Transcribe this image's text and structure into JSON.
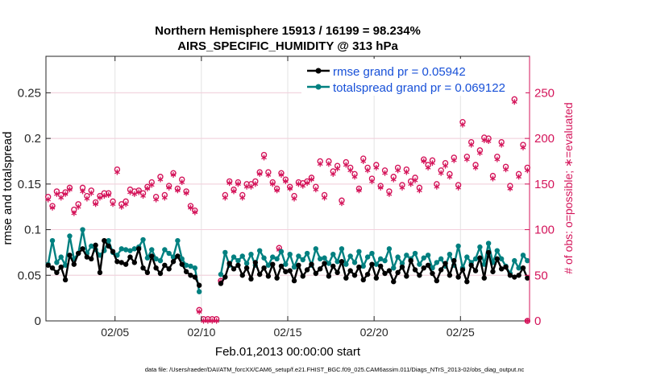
{
  "chart_data": {
    "type": "line",
    "title": "Northern Hemisphere 15913 / 16199 = 98.234%",
    "subtitle": "AIRS_SPECIFIC_HUMIDITY @ 313 hPa",
    "xlabel": "Feb.01,2013 00:00:00 start",
    "ylabel": "rmse and totalspread",
    "ylabel_right": "# of obs: o=possible; ∗=evaluated",
    "footnote": "data file: /Users/raeder/DAI/ATM_forcXX/CAM6_setup/f.e21.FHIST_BGC.f09_025.CAM6assim.011/Diags_NTrS_2013-02/obs_diag_output.nc",
    "x_range": [
      1.0,
      29.0
    ],
    "ylim": [
      0,
      0.29
    ],
    "ylim_right": [
      0,
      290
    ],
    "x_ticks": [
      5,
      10,
      15,
      20,
      25
    ],
    "x_tick_labels": [
      "02/05",
      "02/10",
      "02/15",
      "02/20",
      "02/25"
    ],
    "y_ticks": [
      0,
      0.05,
      0.1,
      0.15,
      0.2,
      0.25
    ],
    "y_tick_labels": [
      "0",
      "0.05",
      "0.1",
      "0.15",
      "0.2",
      "0.25"
    ],
    "y_ticks_right": [
      0,
      50,
      100,
      150,
      200,
      250
    ],
    "y_tick_labels_right": [
      "0",
      "50",
      "100",
      "150",
      "200",
      "250"
    ],
    "grid": true,
    "legend_position": "top-right",
    "colors": {
      "rmse": "#000000",
      "spread": "#008080",
      "obs": "#d4145a",
      "legend_text": "#1750d8"
    },
    "x": [
      1.125,
      1.375,
      1.625,
      1.875,
      2.125,
      2.375,
      2.625,
      2.875,
      3.125,
      3.375,
      3.625,
      3.875,
      4.125,
      4.375,
      4.625,
      4.875,
      5.125,
      5.375,
      5.625,
      5.875,
      6.125,
      6.375,
      6.625,
      6.875,
      7.125,
      7.375,
      7.625,
      7.875,
      8.125,
      8.375,
      8.625,
      8.875,
      9.125,
      9.375,
      9.625,
      9.875,
      10.125,
      10.375,
      10.625,
      10.875,
      11.125,
      11.375,
      11.625,
      11.875,
      12.125,
      12.375,
      12.625,
      12.875,
      13.125,
      13.375,
      13.625,
      13.875,
      14.125,
      14.375,
      14.625,
      14.875,
      15.125,
      15.375,
      15.625,
      15.875,
      16.125,
      16.375,
      16.625,
      16.875,
      17.125,
      17.375,
      17.625,
      17.875,
      18.125,
      18.375,
      18.625,
      18.875,
      19.125,
      19.375,
      19.625,
      19.875,
      20.125,
      20.375,
      20.625,
      20.875,
      21.125,
      21.375,
      21.625,
      21.875,
      22.125,
      22.375,
      22.625,
      22.875,
      23.125,
      23.375,
      23.625,
      23.875,
      24.125,
      24.375,
      24.625,
      24.875,
      25.125,
      25.375,
      25.625,
      25.875,
      26.125,
      26.375,
      26.625,
      26.875,
      27.125,
      27.375,
      27.625,
      27.875,
      28.125,
      28.375,
      28.625,
      28.875
    ],
    "series": [
      {
        "name": "rmse grand pr = 0.05942",
        "values": [
          0.061,
          0.058,
          0.053,
          0.059,
          0.045,
          0.072,
          0.062,
          0.074,
          0.079,
          0.07,
          0.068,
          0.083,
          0.053,
          0.088,
          0.082,
          0.076,
          0.065,
          0.064,
          0.062,
          0.07,
          0.064,
          0.079,
          0.058,
          0.053,
          0.071,
          0.058,
          0.052,
          0.061,
          0.057,
          0.065,
          0.071,
          0.062,
          0.054,
          0.05,
          0.048,
          0.039,
          null,
          null,
          null,
          null,
          0.041,
          0.048,
          0.063,
          0.057,
          0.061,
          0.05,
          0.058,
          0.046,
          0.064,
          0.051,
          0.058,
          0.049,
          0.062,
          0.047,
          0.06,
          0.054,
          0.055,
          0.044,
          0.061,
          0.049,
          0.056,
          0.062,
          0.052,
          0.057,
          0.063,
          0.049,
          0.06,
          0.053,
          0.065,
          0.047,
          0.055,
          0.05,
          0.059,
          0.045,
          0.051,
          0.062,
          0.047,
          0.06,
          0.052,
          0.055,
          0.043,
          0.053,
          0.059,
          0.049,
          0.066,
          0.056,
          0.05,
          0.058,
          0.061,
          0.052,
          0.044,
          0.056,
          0.063,
          0.05,
          0.066,
          0.048,
          0.056,
          0.043,
          0.061,
          0.055,
          0.069,
          0.047,
          0.075,
          0.054,
          0.068,
          0.057,
          0.059,
          0.05,
          0.048,
          0.05,
          0.058,
          0.047
        ]
      },
      {
        "name": "totalspread grand pr = 0.069122",
        "values": [
          0.062,
          0.088,
          0.064,
          0.07,
          0.061,
          0.093,
          0.068,
          0.074,
          0.1,
          0.074,
          0.082,
          0.078,
          0.072,
          0.077,
          0.088,
          0.075,
          0.072,
          0.079,
          0.078,
          0.077,
          0.079,
          0.081,
          0.089,
          0.069,
          0.078,
          0.068,
          0.066,
          0.078,
          0.074,
          0.07,
          0.088,
          0.068,
          0.061,
          0.06,
          0.058,
          0.032,
          null,
          null,
          null,
          null,
          0.051,
          0.075,
          0.061,
          0.07,
          0.066,
          0.071,
          0.063,
          0.073,
          0.061,
          0.077,
          0.069,
          0.061,
          0.07,
          0.068,
          0.076,
          0.062,
          0.073,
          0.059,
          0.071,
          0.067,
          0.074,
          0.061,
          0.079,
          0.068,
          0.069,
          0.063,
          0.073,
          0.065,
          0.079,
          0.062,
          0.071,
          0.064,
          0.076,
          0.06,
          0.07,
          0.074,
          0.062,
          0.068,
          0.066,
          0.079,
          0.058,
          0.07,
          0.063,
          0.072,
          0.068,
          0.074,
          0.062,
          0.069,
          0.072,
          0.058,
          0.064,
          0.068,
          0.06,
          0.073,
          0.061,
          0.082,
          0.058,
          0.07,
          0.064,
          0.068,
          0.081,
          0.062,
          0.085,
          0.064,
          0.077,
          0.068,
          0.06,
          0.052,
          0.066,
          0.058,
          0.072,
          0.066
        ]
      }
    ],
    "obs_possible": [
      136,
      126,
      142,
      138,
      141,
      146,
      122,
      128,
      146,
      137,
      143,
      130,
      137,
      140,
      140,
      131,
      166,
      128,
      131,
      144,
      142,
      143,
      140,
      147,
      152,
      136,
      158,
      138,
      148,
      162,
      145,
      155,
      142,
      126,
      121,
      12,
      2,
      2,
      2,
      2,
      44,
      138,
      153,
      144,
      152,
      138,
      150,
      150,
      153,
      163,
      182,
      163,
      152,
      145,
      162,
      155,
      147,
      137,
      152,
      151,
      153,
      157,
      147,
      175,
      138,
      175,
      164,
      170,
      132,
      174,
      168,
      161,
      145,
      178,
      168,
      156,
      171,
      148,
      165,
      142,
      158,
      168,
      149,
      166,
      153,
      157,
      146,
      177,
      171,
      176,
      150,
      165,
      173,
      161,
      179,
      149,
      218,
      180,
      196,
      171,
      187,
      201,
      200,
      159,
      180,
      196,
      169,
      148,
      243,
      161,
      193,
      168
    ],
    "obs_evaluated": [
      133,
      124,
      139,
      135,
      139,
      144,
      118,
      125,
      142,
      134,
      140,
      128,
      135,
      137,
      138,
      128,
      163,
      125,
      128,
      141,
      139,
      141,
      137,
      145,
      149,
      133,
      155,
      135,
      146,
      160,
      143,
      152,
      140,
      124,
      119,
      10,
      0,
      0,
      0,
      0,
      43,
      135,
      151,
      142,
      150,
      135,
      147,
      147,
      150,
      161,
      179,
      160,
      150,
      143,
      160,
      153,
      145,
      134,
      150,
      148,
      151,
      155,
      144,
      172,
      135,
      172,
      161,
      167,
      129,
      171,
      165,
      158,
      143,
      175,
      165,
      153,
      168,
      146,
      162,
      139,
      155,
      165,
      146,
      163,
      150,
      154,
      143,
      175,
      168,
      173,
      147,
      162,
      170,
      158,
      176,
      146,
      215,
      177,
      193,
      168,
      184,
      198,
      197,
      156,
      177,
      193,
      166,
      145,
      240,
      158,
      190,
      165
    ],
    "obs_outliers": [
      {
        "x": 14.5,
        "possible": 80,
        "evaluated": 78
      },
      {
        "x": 28.875,
        "possible": 0,
        "evaluated": 0
      }
    ]
  }
}
